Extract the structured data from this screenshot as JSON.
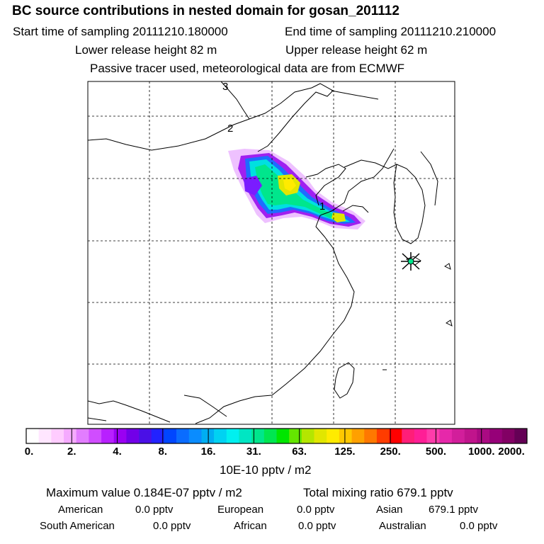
{
  "header": {
    "title": "BC  source contributions in nested domain for gosan_201112",
    "start_time": "Start time of sampling 20111210.180000",
    "end_time": "End time of sampling 20111210.210000",
    "lower_height": "Lower release height   82 m",
    "upper_height": "Upper release height   62 m",
    "note": "Passive tracer used, meteorological data are from ECMWF"
  },
  "map": {
    "contour_labels": [
      "3",
      "2",
      "1"
    ]
  },
  "colorbar": {
    "ticks": [
      "0.",
      "2.",
      "4.",
      "8.",
      "16.",
      "31.",
      "63.",
      "125.",
      "250.",
      "500.",
      "1000.",
      "2000."
    ],
    "colors": [
      "#ffffff",
      "#ffe6ff",
      "#ffccff",
      "#f5aaff",
      "#e27dff",
      "#d04dff",
      "#b820ff",
      "#9a00f2",
      "#7200e8",
      "#4a10e6",
      "#2222ff",
      "#0046ff",
      "#0a6cff",
      "#0a8cff",
      "#00aef2",
      "#00d2f2",
      "#00f0f0",
      "#00e6c3",
      "#00e68c",
      "#00e650",
      "#00e600",
      "#64e600",
      "#b4e600",
      "#e1e600",
      "#ffeb00",
      "#ffc800",
      "#ffa000",
      "#ff7800",
      "#ff3c00",
      "#ff0000",
      "#ff1e78",
      "#ff1e96",
      "#ff3caa",
      "#e628aa",
      "#d21e9b",
      "#c0148c",
      "#aa0a82",
      "#960078",
      "#820064",
      "#640055"
    ],
    "unit": "10E-10 pptv / m2"
  },
  "summary": {
    "max_value": "Maximum value  0.184E-07 pptv / m2",
    "total_mixing": "Total mixing ratio      679.1 pptv",
    "rows": [
      [
        {
          "label": "American",
          "value": "0.0 pptv"
        },
        {
          "label": "European",
          "value": "0.0 pptv"
        },
        {
          "label": "Asian",
          "value": "679.1 pptv"
        }
      ],
      [
        {
          "label": "South American",
          "value": "0.0 pptv"
        },
        {
          "label": "African",
          "value": "0.0 pptv"
        },
        {
          "label": "Australian",
          "value": "0.0 pptv"
        }
      ]
    ]
  }
}
